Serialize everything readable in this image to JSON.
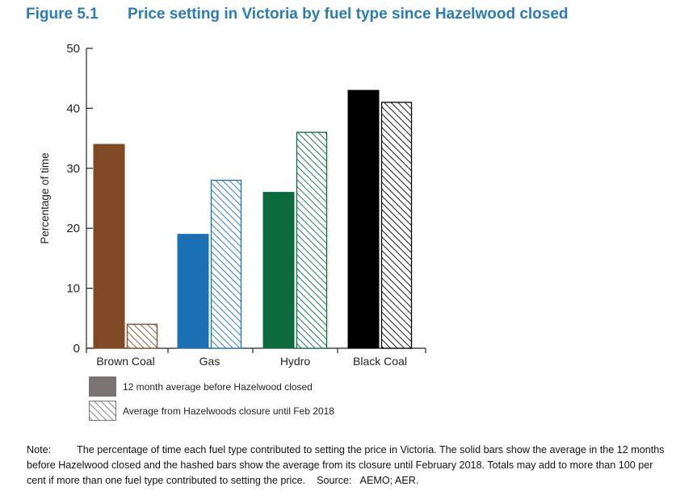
{
  "figure": {
    "number": "Figure 5.1",
    "title": "Price setting in Victoria by fuel type since Hazelwood closed"
  },
  "chart_data": {
    "type": "bar",
    "categories": [
      "Brown Coal",
      "Gas",
      "Hydro",
      "Black Coal"
    ],
    "series": [
      {
        "name": "12 month average before Hazelwood closed",
        "style": "solid",
        "values": [
          34,
          19,
          26,
          43
        ]
      },
      {
        "name": "Average from Hazelwoods closure until Feb 2018",
        "style": "hatched",
        "values": [
          4,
          28,
          36,
          41
        ]
      }
    ],
    "category_colors": [
      "#7f4a23",
      "#1a70b3",
      "#0c6b3c",
      "#000000"
    ],
    "legend_swatch_color": "#7a7574",
    "ylabel": "Percentage of time",
    "xlabel": "",
    "ylim": [
      0,
      50
    ],
    "yticks": [
      0,
      10,
      20,
      30,
      40,
      50
    ],
    "grid": false,
    "legend_position": "bottom-left"
  },
  "note": {
    "label": "Note:",
    "text": "The percentage of time each fuel type contributed to setting the price in Victoria. The solid bars show the average in the 12 months before Hazelwood closed and the hashed bars show the average from its closure until February 2018. Totals may add to more than 100 per cent if more than one fuel type contributed to setting the price.",
    "source_label": "Source:",
    "source": "AEMO; AER."
  }
}
